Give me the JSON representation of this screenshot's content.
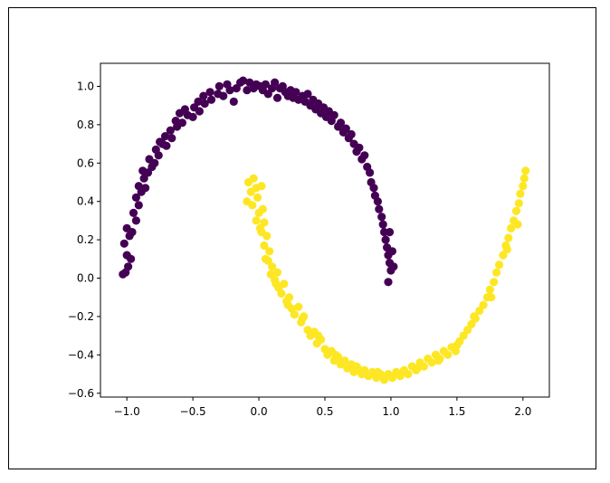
{
  "chart_data": {
    "type": "scatter",
    "title": "",
    "xlabel": "",
    "ylabel": "",
    "xlim": [
      -1.2,
      2.2
    ],
    "ylim": [
      -0.62,
      1.12
    ],
    "x_ticks": [
      -1.0,
      -0.5,
      0.0,
      0.5,
      1.0,
      1.5,
      2.0
    ],
    "x_tick_labels": [
      "−1.0",
      "−0.5",
      "0.0",
      "0.5",
      "1.0",
      "1.5",
      "2.0"
    ],
    "y_ticks": [
      -0.6,
      -0.4,
      -0.2,
      0.0,
      0.2,
      0.4,
      0.6,
      0.8,
      1.0
    ],
    "y_tick_labels": [
      "−0.6",
      "−0.4",
      "−0.2",
      "0.0",
      "0.2",
      "0.4",
      "0.6",
      "0.8",
      "1.0"
    ],
    "grid": false,
    "legend": "none",
    "series": [
      {
        "color": "#440154",
        "points": [
          [
            -1.03,
            0.02
          ],
          [
            -1.01,
            0.03
          ],
          [
            -0.99,
            0.06
          ],
          [
            -1.0,
            0.12
          ],
          [
            -0.97,
            0.1
          ],
          [
            -1.02,
            0.18
          ],
          [
            -0.98,
            0.22
          ],
          [
            -1.0,
            0.26
          ],
          [
            -0.96,
            0.24
          ],
          [
            -0.93,
            0.3
          ],
          [
            -0.95,
            0.34
          ],
          [
            -0.91,
            0.38
          ],
          [
            -0.93,
            0.42
          ],
          [
            -0.89,
            0.45
          ],
          [
            -0.91,
            0.48
          ],
          [
            -0.86,
            0.47
          ],
          [
            -0.87,
            0.52
          ],
          [
            -0.88,
            0.56
          ],
          [
            -0.84,
            0.55
          ],
          [
            -0.81,
            0.58
          ],
          [
            -0.83,
            0.62
          ],
          [
            -0.79,
            0.6
          ],
          [
            -0.76,
            0.64
          ],
          [
            -0.78,
            0.67
          ],
          [
            -0.73,
            0.7
          ],
          [
            -0.75,
            0.71
          ],
          [
            -0.7,
            0.69
          ],
          [
            -0.71,
            0.74
          ],
          [
            -0.66,
            0.73
          ],
          [
            -0.67,
            0.77
          ],
          [
            -0.62,
            0.79
          ],
          [
            -0.63,
            0.82
          ],
          [
            -0.58,
            0.81
          ],
          [
            -0.6,
            0.86
          ],
          [
            -0.54,
            0.85
          ],
          [
            -0.56,
            0.88
          ],
          [
            -0.5,
            0.84
          ],
          [
            -0.49,
            0.89
          ],
          [
            -0.45,
            0.87
          ],
          [
            -0.46,
            0.92
          ],
          [
            -0.41,
            0.91
          ],
          [
            -0.42,
            0.95
          ],
          [
            -0.36,
            0.93
          ],
          [
            -0.37,
            0.97
          ],
          [
            -0.31,
            0.96
          ],
          [
            -0.3,
            1.0
          ],
          [
            -0.27,
            0.95
          ],
          [
            -0.24,
            1.01
          ],
          [
            -0.22,
            0.98
          ],
          [
            -0.19,
            0.92
          ],
          [
            -0.17,
            0.99
          ],
          [
            -0.14,
            1.02
          ],
          [
            -0.12,
            1.03
          ],
          [
            -0.09,
            0.98
          ],
          [
            -0.07,
            1.02
          ],
          [
            -0.04,
            0.99
          ],
          [
            -0.02,
            1.01
          ],
          [
            0.01,
            1.0
          ],
          [
            0.03,
            0.98
          ],
          [
            0.05,
            1.01
          ],
          [
            0.07,
            0.96
          ],
          [
            0.1,
            0.99
          ],
          [
            0.12,
            1.02
          ],
          [
            0.14,
            0.94
          ],
          [
            0.16,
            0.99
          ],
          [
            0.18,
            1.0
          ],
          [
            0.2,
            0.97
          ],
          [
            0.22,
            0.95
          ],
          [
            0.24,
            0.98
          ],
          [
            0.26,
            0.94
          ],
          [
            0.28,
            0.97
          ],
          [
            0.3,
            0.93
          ],
          [
            0.33,
            0.95
          ],
          [
            0.35,
            0.92
          ],
          [
            0.37,
            0.96
          ],
          [
            0.39,
            0.9
          ],
          [
            0.41,
            0.93
          ],
          [
            0.43,
            0.88
          ],
          [
            0.45,
            0.91
          ],
          [
            0.47,
            0.86
          ],
          [
            0.49,
            0.89
          ],
          [
            0.51,
            0.84
          ],
          [
            0.53,
            0.87
          ],
          [
            0.55,
            0.82
          ],
          [
            0.57,
            0.85
          ],
          [
            0.6,
            0.79
          ],
          [
            0.62,
            0.81
          ],
          [
            0.64,
            0.76
          ],
          [
            0.66,
            0.78
          ],
          [
            0.68,
            0.73
          ],
          [
            0.7,
            0.75
          ],
          [
            0.72,
            0.7
          ],
          [
            0.74,
            0.66
          ],
          [
            0.76,
            0.68
          ],
          [
            0.78,
            0.62
          ],
          [
            0.8,
            0.64
          ],
          [
            0.82,
            0.58
          ],
          [
            0.84,
            0.55
          ],
          [
            0.85,
            0.5
          ],
          [
            0.87,
            0.47
          ],
          [
            0.88,
            0.43
          ],
          [
            0.9,
            0.4
          ],
          [
            0.91,
            0.36
          ],
          [
            0.93,
            0.32
          ],
          [
            0.94,
            0.28
          ],
          [
            0.95,
            0.24
          ],
          [
            0.96,
            0.2
          ],
          [
            0.97,
            0.16
          ],
          [
            0.98,
            0.12
          ],
          [
            0.99,
            0.08
          ],
          [
            1.0,
            0.04
          ],
          [
            1.02,
            0.06
          ],
          [
            1.01,
            0.14
          ],
          [
            0.99,
            0.24
          ],
          [
            0.98,
            -0.02
          ]
        ]
      },
      {
        "color": "#fde725",
        "points": [
          [
            -0.08,
            0.5
          ],
          [
            -0.06,
            0.45
          ],
          [
            -0.09,
            0.4
          ],
          [
            -0.04,
            0.52
          ],
          [
            -0.02,
            0.47
          ],
          [
            -0.05,
            0.38
          ],
          [
            -0.01,
            0.42
          ],
          [
            0.02,
            0.48
          ],
          [
            0.0,
            0.34
          ],
          [
            0.03,
            0.36
          ],
          [
            -0.02,
            0.3
          ],
          [
            0.04,
            0.29
          ],
          [
            0.02,
            0.24
          ],
          [
            0.06,
            0.22
          ],
          [
            0.04,
            0.17
          ],
          [
            0.08,
            0.14
          ],
          [
            0.07,
            0.09
          ],
          [
            0.1,
            0.06
          ],
          [
            0.09,
            0.02
          ],
          [
            0.12,
            -0.01
          ],
          [
            0.14,
            0.03
          ],
          [
            0.15,
            -0.05
          ],
          [
            0.17,
            -0.08
          ],
          [
            0.19,
            -0.03
          ],
          [
            0.21,
            -0.12
          ],
          [
            0.23,
            -0.1
          ],
          [
            0.25,
            -0.16
          ],
          [
            0.27,
            -0.19
          ],
          [
            0.3,
            -0.15
          ],
          [
            0.32,
            -0.23
          ],
          [
            0.34,
            -0.2
          ],
          [
            0.37,
            -0.27
          ],
          [
            0.39,
            -0.3
          ],
          [
            0.42,
            -0.28
          ],
          [
            0.44,
            -0.34
          ],
          [
            0.47,
            -0.32
          ],
          [
            0.5,
            -0.37
          ],
          [
            0.52,
            -0.4
          ],
          [
            0.55,
            -0.38
          ],
          [
            0.57,
            -0.43
          ],
          [
            0.6,
            -0.41
          ],
          [
            0.62,
            -0.45
          ],
          [
            0.65,
            -0.43
          ],
          [
            0.67,
            -0.47
          ],
          [
            0.7,
            -0.45
          ],
          [
            0.72,
            -0.49
          ],
          [
            0.75,
            -0.47
          ],
          [
            0.78,
            -0.5
          ],
          [
            0.8,
            -0.48
          ],
          [
            0.83,
            -0.51
          ],
          [
            0.86,
            -0.49
          ],
          [
            0.89,
            -0.52
          ],
          [
            0.92,
            -0.5
          ],
          [
            0.95,
            -0.53
          ],
          [
            0.98,
            -0.5
          ],
          [
            1.01,
            -0.52
          ],
          [
            1.04,
            -0.49
          ],
          [
            1.07,
            -0.51
          ],
          [
            1.1,
            -0.48
          ],
          [
            1.13,
            -0.5
          ],
          [
            1.16,
            -0.46
          ],
          [
            1.19,
            -0.48
          ],
          [
            1.22,
            -0.44
          ],
          [
            1.25,
            -0.46
          ],
          [
            1.28,
            -0.42
          ],
          [
            1.31,
            -0.44
          ],
          [
            1.34,
            -0.4
          ],
          [
            1.37,
            -0.42
          ],
          [
            1.4,
            -0.38
          ],
          [
            1.43,
            -0.4
          ],
          [
            1.46,
            -0.36
          ],
          [
            1.49,
            -0.38
          ],
          [
            1.52,
            -0.33
          ],
          [
            1.55,
            -0.3
          ],
          [
            1.58,
            -0.27
          ],
          [
            1.61,
            -0.24
          ],
          [
            1.64,
            -0.21
          ],
          [
            1.67,
            -0.17
          ],
          [
            1.7,
            -0.14
          ],
          [
            1.73,
            -0.1
          ],
          [
            1.75,
            -0.06
          ],
          [
            1.78,
            -0.02
          ],
          [
            1.8,
            0.03
          ],
          [
            1.82,
            0.07
          ],
          [
            1.85,
            0.12
          ],
          [
            1.87,
            0.17
          ],
          [
            1.89,
            0.21
          ],
          [
            1.91,
            0.26
          ],
          [
            1.93,
            0.3
          ],
          [
            1.95,
            0.35
          ],
          [
            1.97,
            0.39
          ],
          [
            1.98,
            0.44
          ],
          [
            2.0,
            0.48
          ],
          [
            2.01,
            0.52
          ],
          [
            2.02,
            0.56
          ],
          [
            1.96,
            0.28
          ],
          [
            1.88,
            0.15
          ],
          [
            1.76,
            -0.1
          ],
          [
            1.63,
            -0.2
          ],
          [
            1.5,
            -0.35
          ],
          [
            1.36,
            -0.43
          ],
          [
            1.2,
            -0.47
          ],
          [
            1.05,
            -0.5
          ],
          [
            0.9,
            -0.49
          ],
          [
            0.74,
            -0.46
          ],
          [
            0.58,
            -0.4
          ],
          [
            0.45,
            -0.3
          ],
          [
            0.33,
            -0.21
          ],
          [
            0.22,
            -0.14
          ],
          [
            0.13,
            -0.03
          ],
          [
            0.05,
            0.1
          ],
          [
            0.01,
            0.26
          ]
        ]
      }
    ]
  }
}
